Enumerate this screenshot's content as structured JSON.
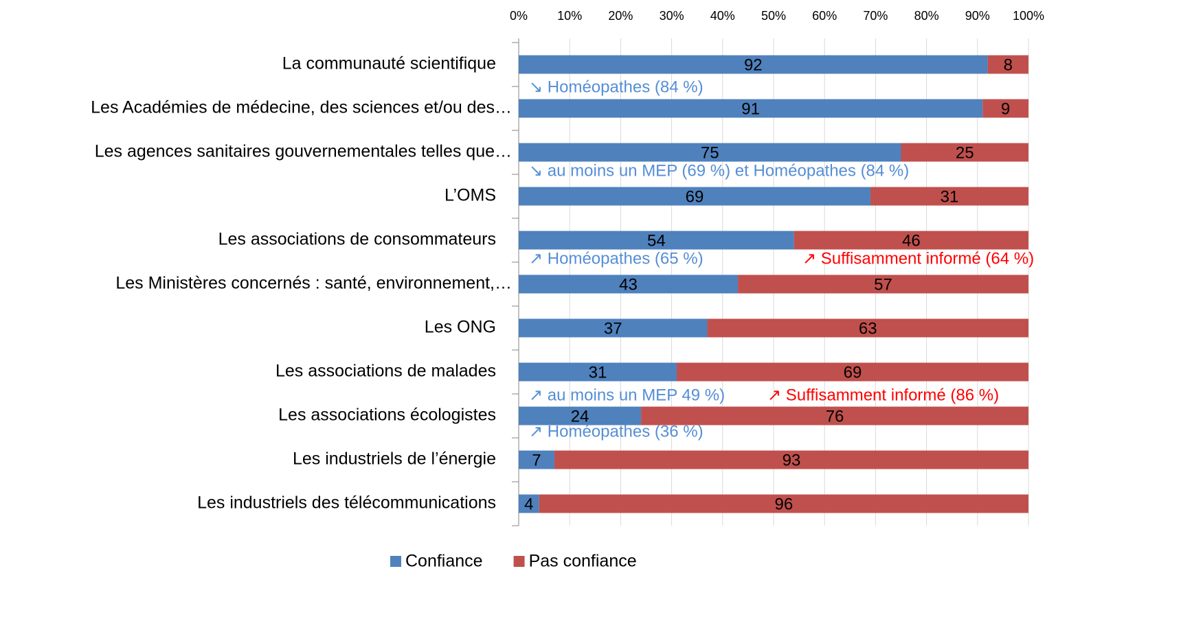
{
  "chart_data": {
    "type": "stacked_barh",
    "categories": [
      "La communauté scientifique",
      "Les Académies de médecine, des sciences et/ou des…",
      "Les agences sanitaires gouvernementales telles que…",
      "L’OMS",
      "Les associations de consommateurs",
      "Les Ministères concernés : santé, environnement,…",
      "Les ONG",
      "Les associations de malades",
      "Les associations écologistes",
      "Les industriels de l’énergie",
      "Les industriels des télécommunications"
    ],
    "series": [
      {
        "name": "Confiance",
        "color": "#4f81bd",
        "values": [
          92,
          91,
          75,
          69,
          54,
          43,
          37,
          31,
          24,
          7,
          4
        ]
      },
      {
        "name": "Pas confiance",
        "color": "#c0504d",
        "values": [
          8,
          9,
          25,
          31,
          46,
          57,
          63,
          69,
          76,
          93,
          96
        ]
      }
    ],
    "xlim": [
      0,
      100
    ],
    "xticks": [
      {
        "value": 0,
        "label": "0%"
      },
      {
        "value": 10,
        "label": "10%"
      },
      {
        "value": 20,
        "label": "20%"
      },
      {
        "value": 30,
        "label": "30%"
      },
      {
        "value": 40,
        "label": "40%"
      },
      {
        "value": 50,
        "label": "50%"
      },
      {
        "value": 60,
        "label": "60%"
      },
      {
        "value": 70,
        "label": "70%"
      },
      {
        "value": 80,
        "label": "80%"
      },
      {
        "value": 90,
        "label": "90%"
      },
      {
        "value": 100,
        "label": "100%"
      }
    ],
    "grid": true,
    "legend": "bottom",
    "annotations": [
      {
        "text": "↘ Homéopathes (84 %)",
        "color": "#558ed5"
      },
      {
        "text": "↘ au moins un MEP (69 %) et Homéopathes (84 %)",
        "color": "#558ed5"
      },
      {
        "text": "↗ Homéopathes (65 %)",
        "color": "#558ed5"
      },
      {
        "text": "↗ Suffisamment informé (64 %)",
        "color": "#ff0000"
      },
      {
        "text": "↗ au moins un MEP 49 %)",
        "color": "#558ed5"
      },
      {
        "text": "↗ Suffisamment informé (86 %)",
        "color": "#ff0000"
      },
      {
        "text": "↗ Homéopathes (36 %)",
        "color": "#558ed5"
      }
    ]
  }
}
